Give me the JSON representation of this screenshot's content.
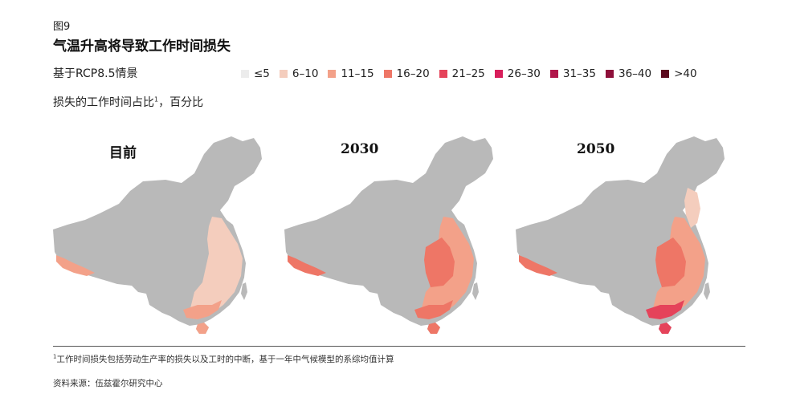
{
  "figure_label": "图9",
  "title": "气温升高将导致工作时间损失",
  "subtitle": "基于RCP8.5情景",
  "unit_label": "损失的工作时间占比",
  "unit_sup": "1",
  "unit_suffix": "，百分比",
  "legend": [
    {
      "label": "≤5",
      "color": "#ececec"
    },
    {
      "label": "6–10",
      "color": "#f4cdbd"
    },
    {
      "label": "11–15",
      "color": "#f3a189"
    },
    {
      "label": "16–20",
      "color": "#ee7666"
    },
    {
      "label": "21–25",
      "color": "#e5435a"
    },
    {
      "label": "26–30",
      "color": "#d81e5b"
    },
    {
      "label": "31–35",
      "color": "#b0154a"
    },
    {
      "label": "36–40",
      "color": "#8e0f3a"
    },
    {
      "label": ">40",
      "color": "#5c0a1e"
    }
  ],
  "chart_data": {
    "type": "heatmap",
    "panels": [
      {
        "label": "目前",
        "category_by_region": {
          "southeast": "6–10",
          "south_coast": "11–15",
          "hainan": "11–15",
          "himalaya_edge": "11–15"
        }
      },
      {
        "label": "2030",
        "category_by_region": {
          "southeast": "11–15",
          "central_south": "16–20",
          "south_coast": "16–20",
          "hainan": "16–20",
          "himalaya_edge": "16–20"
        }
      },
      {
        "label": "2050",
        "category_by_region": {
          "north_plain": "6–10",
          "southeast": "11–15",
          "central_south": "16–20",
          "south_coast": "21–25",
          "hainan": "21–25",
          "himalaya_edge": "16–20"
        }
      }
    ]
  },
  "footnote_sup": "1",
  "footnote": "工作时间损失包括劳动生产率的损失以及工时的中断，基于一年中气候模型的系综均值计算",
  "source": "资料来源：伍兹霍尔研究中心",
  "colors": {
    "base": "#b9b9b9"
  }
}
